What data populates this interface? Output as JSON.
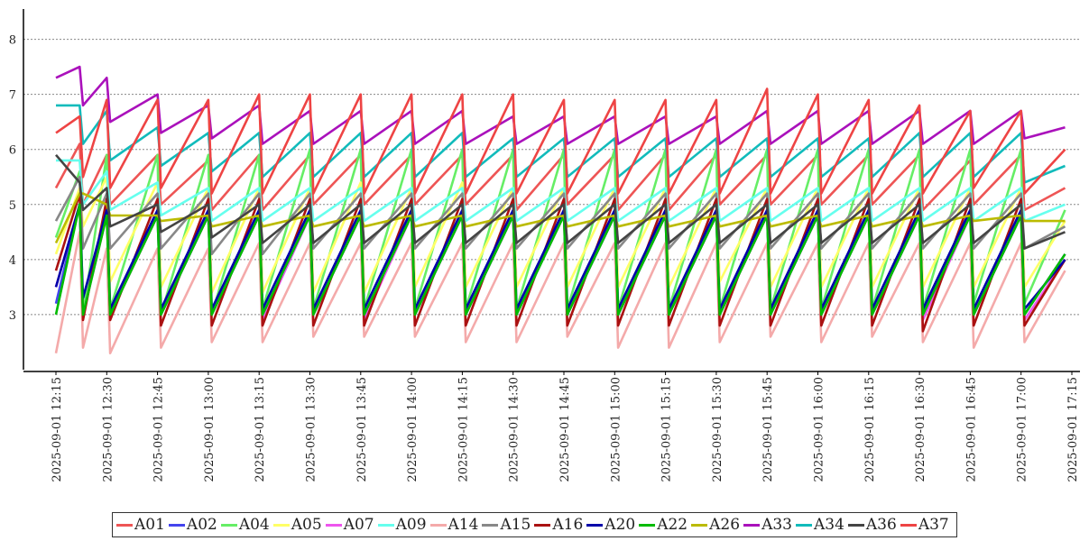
{
  "chart_data": {
    "type": "line",
    "title": "",
    "xlabel": "",
    "ylabel": "",
    "ylim": [
      2,
      8.55
    ],
    "y_ticks": [
      3,
      4,
      5,
      6,
      7,
      8
    ],
    "grid": "horizontal dotted",
    "legend_placement": "bottom",
    "x_tick_labels": [
      "2025-09-01 12:15",
      "2025-09-01 12:30",
      "2025-09-01 12:45",
      "2025-09-01 13:00",
      "2025-09-01 13:15",
      "2025-09-01 13:30",
      "2025-09-01 13:45",
      "2025-09-01 14:00",
      "2025-09-01 14:15",
      "2025-09-01 14:30",
      "2025-09-01 14:45",
      "2025-09-01 15:00",
      "2025-09-01 15:15",
      "2025-09-01 15:30",
      "2025-09-01 15:45",
      "2025-09-01 16:00",
      "2025-09-01 16:15",
      "2025-09-01 16:30",
      "2025-09-01 16:45",
      "2025-09-01 17:00",
      "2025-09-01 17:15"
    ],
    "x": [
      "12:15",
      "12:22",
      "12:23",
      "12:30",
      "12:31",
      "12:45",
      "12:46",
      "13:00",
      "13:01",
      "13:15",
      "13:16",
      "13:30",
      "13:31",
      "13:45",
      "13:46",
      "14:00",
      "14:01",
      "14:15",
      "14:16",
      "14:30",
      "14:31",
      "14:45",
      "14:46",
      "15:00",
      "15:01",
      "15:15",
      "15:16",
      "15:30",
      "15:31",
      "15:45",
      "15:46",
      "16:00",
      "16:01",
      "16:15",
      "16:16",
      "16:30",
      "16:31",
      "16:45",
      "16:46",
      "17:00",
      "17:01",
      "17:13"
    ],
    "series": [
      {
        "name": "A01",
        "color": "#ee5555",
        "values": [
          5.3,
          6.1,
          5.0,
          5.9,
          5.0,
          5.9,
          5.0,
          5.8,
          4.9,
          5.9,
          4.9,
          5.9,
          5.0,
          5.9,
          5.0,
          5.9,
          5.0,
          5.9,
          5.0,
          5.9,
          4.9,
          5.9,
          5.0,
          5.9,
          4.9,
          5.9,
          4.9,
          5.9,
          5.0,
          5.9,
          5.0,
          5.9,
          5.0,
          5.9,
          5.0,
          5.9,
          4.9,
          5.8,
          5.0,
          5.9,
          4.9,
          5.3
        ]
      },
      {
        "name": "A02",
        "color": "#4444ee",
        "values": [
          3.2,
          5.0,
          3.1,
          4.8,
          3.1,
          4.8,
          3.0,
          4.8,
          3.0,
          4.9,
          2.9,
          4.8,
          3.0,
          4.8,
          2.9,
          4.9,
          3.0,
          4.8,
          3.0,
          4.8,
          3.0,
          4.9,
          3.0,
          4.8,
          3.0,
          4.8,
          3.0,
          4.8,
          3.0,
          4.9,
          3.0,
          4.8,
          3.0,
          4.9,
          3.0,
          4.8,
          3.0,
          4.9,
          3.0,
          4.8,
          3.0,
          4.1
        ]
      },
      {
        "name": "A04",
        "color": "#66ee66",
        "values": [
          4.4,
          5.6,
          3.0,
          5.9,
          3.1,
          5.9,
          3.0,
          5.9,
          3.0,
          5.9,
          3.1,
          6.0,
          3.1,
          6.0,
          3.1,
          6.0,
          3.1,
          6.0,
          3.1,
          6.0,
          3.1,
          6.0,
          3.1,
          6.0,
          3.1,
          6.0,
          3.1,
          6.0,
          3.1,
          6.0,
          3.1,
          6.0,
          3.1,
          6.0,
          3.1,
          6.0,
          3.1,
          6.0,
          3.2,
          6.0,
          3.2,
          4.9
        ]
      },
      {
        "name": "A05",
        "color": "#ffff66",
        "values": [
          4.1,
          5.3,
          4.6,
          5.5,
          3.6,
          5.4,
          3.5,
          5.3,
          3.4,
          5.3,
          3.4,
          5.3,
          3.4,
          5.4,
          3.4,
          5.3,
          3.5,
          5.4,
          3.5,
          5.3,
          3.5,
          5.3,
          3.5,
          5.3,
          3.5,
          5.3,
          3.5,
          5.3,
          3.6,
          5.3,
          3.5,
          5.3,
          3.5,
          5.3,
          3.5,
          5.3,
          3.5,
          5.3,
          3.5,
          5.3,
          3.5,
          4.7
        ]
      },
      {
        "name": "A07",
        "color": "#ee55ee",
        "values": [
          3.5,
          5.0,
          3.0,
          4.8,
          3.0,
          4.8,
          3.0,
          4.8,
          3.0,
          4.8,
          2.9,
          4.8,
          3.0,
          4.8,
          2.9,
          4.8,
          3.0,
          4.8,
          3.0,
          4.8,
          3.0,
          4.8,
          3.0,
          4.8,
          3.0,
          4.8,
          3.0,
          4.8,
          3.0,
          4.8,
          3.0,
          4.8,
          3.0,
          4.8,
          3.0,
          4.8,
          2.9,
          4.8,
          3.0,
          4.8,
          2.9,
          4.0
        ]
      },
      {
        "name": "A09",
        "color": "#66ffee",
        "values": [
          5.8,
          5.8,
          5.0,
          5.6,
          4.9,
          5.4,
          4.8,
          5.3,
          4.7,
          5.3,
          4.7,
          5.3,
          4.7,
          5.3,
          4.7,
          5.3,
          4.7,
          5.3,
          4.7,
          5.3,
          4.7,
          5.3,
          4.7,
          5.3,
          4.7,
          5.3,
          4.7,
          5.3,
          4.7,
          5.3,
          4.7,
          5.3,
          4.7,
          5.3,
          4.7,
          5.3,
          4.7,
          5.3,
          4.7,
          5.3,
          4.7,
          5.0
        ]
      },
      {
        "name": "A14",
        "color": "#f4aaaa",
        "values": [
          2.3,
          4.5,
          2.4,
          4.2,
          2.3,
          4.2,
          2.4,
          4.2,
          2.5,
          4.3,
          2.5,
          4.3,
          2.6,
          4.3,
          2.6,
          4.3,
          2.6,
          4.3,
          2.5,
          4.3,
          2.5,
          4.3,
          2.6,
          4.3,
          2.4,
          4.3,
          2.4,
          4.3,
          2.5,
          4.3,
          2.6,
          4.3,
          2.5,
          4.3,
          2.6,
          4.3,
          2.5,
          4.3,
          2.4,
          4.3,
          2.5,
          3.8
        ]
      },
      {
        "name": "A15",
        "color": "#888888",
        "values": [
          4.7,
          5.5,
          4.2,
          5.2,
          4.2,
          5.2,
          4.2,
          5.2,
          4.1,
          5.2,
          4.1,
          5.2,
          4.2,
          5.2,
          4.2,
          5.2,
          4.2,
          5.2,
          4.2,
          5.2,
          4.2,
          5.2,
          4.2,
          5.2,
          4.2,
          5.2,
          4.2,
          5.2,
          4.2,
          5.2,
          4.2,
          5.2,
          4.2,
          5.2,
          4.2,
          5.2,
          4.2,
          5.2,
          4.2,
          5.2,
          4.2,
          4.6
        ]
      },
      {
        "name": "A16",
        "color": "#aa1111",
        "values": [
          3.8,
          5.2,
          2.9,
          5.1,
          2.9,
          5.1,
          2.8,
          5.1,
          2.8,
          5.1,
          2.8,
          5.1,
          2.8,
          5.1,
          2.8,
          5.1,
          2.8,
          5.1,
          2.8,
          5.1,
          2.8,
          5.1,
          2.8,
          5.1,
          2.8,
          5.1,
          2.8,
          5.1,
          2.8,
          5.1,
          2.8,
          5.1,
          2.8,
          5.1,
          2.8,
          5.1,
          2.7,
          5.1,
          2.8,
          5.1,
          2.8,
          4.0
        ]
      },
      {
        "name": "A20",
        "color": "#0000aa",
        "values": [
          3.5,
          5.0,
          3.3,
          4.9,
          3.1,
          4.9,
          3.1,
          4.9,
          3.1,
          4.9,
          3.1,
          4.9,
          3.1,
          4.9,
          3.1,
          4.9,
          3.1,
          4.9,
          3.1,
          4.9,
          3.1,
          4.9,
          3.1,
          4.9,
          3.1,
          4.9,
          3.1,
          4.9,
          3.1,
          4.9,
          3.1,
          4.9,
          3.1,
          4.9,
          3.1,
          4.9,
          3.1,
          4.9,
          3.1,
          4.9,
          3.1,
          4.0
        ]
      },
      {
        "name": "A22",
        "color": "#00bb00",
        "values": [
          3.0,
          5.0,
          3.0,
          4.8,
          3.0,
          4.8,
          3.0,
          4.8,
          3.0,
          4.8,
          3.0,
          4.8,
          3.0,
          4.8,
          3.0,
          4.8,
          3.0,
          4.8,
          3.0,
          4.8,
          3.0,
          4.8,
          3.0,
          4.8,
          3.0,
          4.8,
          3.0,
          4.8,
          3.0,
          4.8,
          3.0,
          4.8,
          3.0,
          4.8,
          3.0,
          4.8,
          3.0,
          4.8,
          3.0,
          4.8,
          3.0,
          4.1
        ]
      },
      {
        "name": "A26",
        "color": "#bbbb00",
        "values": [
          4.3,
          5.2,
          5.2,
          5.0,
          4.8,
          4.8,
          4.7,
          4.8,
          4.6,
          4.8,
          4.6,
          4.8,
          4.6,
          4.8,
          4.6,
          4.8,
          4.6,
          4.8,
          4.6,
          4.8,
          4.6,
          4.8,
          4.6,
          4.8,
          4.6,
          4.8,
          4.6,
          4.8,
          4.6,
          4.8,
          4.6,
          4.8,
          4.6,
          4.8,
          4.6,
          4.8,
          4.6,
          4.8,
          4.7,
          4.8,
          4.7,
          4.7
        ]
      },
      {
        "name": "A33",
        "color": "#aa11bb",
        "values": [
          7.3,
          7.5,
          6.8,
          7.3,
          6.5,
          7.0,
          6.3,
          6.8,
          6.2,
          6.8,
          6.1,
          6.7,
          6.1,
          6.7,
          6.1,
          6.7,
          6.1,
          6.7,
          6.1,
          6.6,
          6.1,
          6.6,
          6.1,
          6.6,
          6.1,
          6.6,
          6.1,
          6.6,
          6.1,
          6.7,
          6.1,
          6.7,
          6.1,
          6.7,
          6.1,
          6.7,
          6.1,
          6.7,
          6.1,
          6.7,
          6.2,
          6.4
        ]
      },
      {
        "name": "A34",
        "color": "#11bbbb",
        "values": [
          6.8,
          6.8,
          6.1,
          6.7,
          5.8,
          6.4,
          5.7,
          6.3,
          5.6,
          6.3,
          5.5,
          6.3,
          5.5,
          6.3,
          5.5,
          6.3,
          5.5,
          6.3,
          5.5,
          6.2,
          5.5,
          6.2,
          5.5,
          6.2,
          5.5,
          6.2,
          5.5,
          6.2,
          5.5,
          6.2,
          5.5,
          6.2,
          5.5,
          6.2,
          5.5,
          6.3,
          5.5,
          6.3,
          5.5,
          6.3,
          5.4,
          5.7
        ]
      },
      {
        "name": "A36",
        "color": "#444444",
        "values": [
          5.9,
          5.4,
          4.9,
          5.3,
          4.6,
          5.0,
          4.5,
          5.0,
          4.4,
          5.0,
          4.3,
          5.0,
          4.3,
          5.0,
          4.3,
          5.0,
          4.3,
          5.0,
          4.3,
          5.0,
          4.3,
          5.0,
          4.3,
          5.0,
          4.3,
          5.0,
          4.3,
          5.0,
          4.3,
          5.0,
          4.3,
          5.0,
          4.3,
          5.0,
          4.3,
          5.0,
          4.3,
          5.0,
          4.3,
          5.0,
          4.2,
          4.5
        ]
      },
      {
        "name": "A37",
        "color": "#ee4444",
        "values": [
          6.3,
          6.6,
          5.5,
          6.9,
          5.3,
          6.9,
          5.3,
          6.9,
          5.2,
          7.0,
          5.2,
          7.0,
          5.2,
          7.0,
          5.2,
          7.0,
          5.2,
          7.0,
          5.2,
          7.0,
          5.2,
          6.9,
          5.2,
          6.9,
          5.2,
          6.9,
          5.2,
          6.9,
          5.2,
          7.1,
          5.2,
          7.0,
          5.2,
          6.9,
          5.2,
          6.8,
          5.2,
          6.7,
          5.3,
          6.7,
          5.2,
          6.0
        ]
      }
    ]
  }
}
